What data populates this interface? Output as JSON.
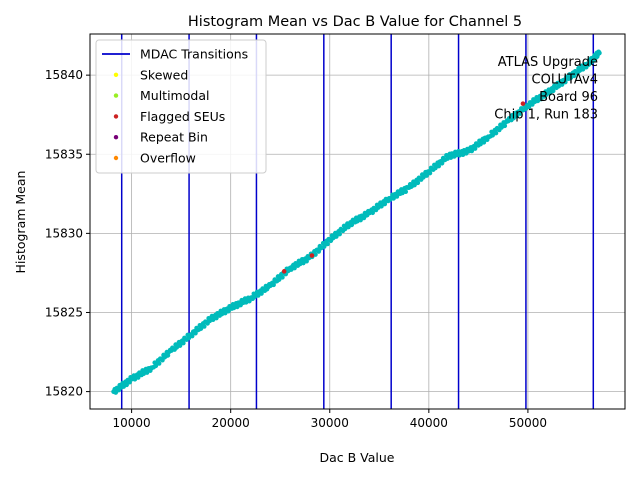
{
  "chart_data": {
    "type": "scatter",
    "title": "Histogram Mean vs Dac B Value for Channel 5",
    "xlabel": "Dac B Value",
    "ylabel": "Histogram Mean",
    "xlim": [
      5800,
      59800
    ],
    "ylim": [
      15818.9,
      15842.6
    ],
    "xticks": [
      10000,
      20000,
      30000,
      40000,
      50000
    ],
    "yticks": [
      15820,
      15825,
      15830,
      15835,
      15840
    ],
    "xtick_labels": [
      "10000",
      "20000",
      "30000",
      "40000",
      "50000"
    ],
    "ytick_labels": [
      "15820",
      "15825",
      "15830",
      "15835",
      "15840"
    ],
    "grid": true,
    "legend_position": "top-left",
    "legend": [
      {
        "label": "MDAC Transitions",
        "kind": "line",
        "color": "#0000cc"
      },
      {
        "label": "Skewed",
        "kind": "dot",
        "color": "#ffff00"
      },
      {
        "label": "Multimodal",
        "kind": "dot",
        "color": "#99ee22"
      },
      {
        "label": "Flagged SEUs",
        "kind": "dot",
        "color": "#cc2222"
      },
      {
        "label": "Repeat Bin",
        "kind": "dot",
        "color": "#770077"
      },
      {
        "label": "Overflow",
        "kind": "dot",
        "color": "#ff8800"
      }
    ],
    "annotation_lines": [
      "ATLAS Upgrade",
      "COLUTAv4",
      "Board 96",
      "Chip 1, Run 183"
    ],
    "mdac_transitions": [
      9000,
      15800,
      22600,
      29400,
      36200,
      43000,
      49800,
      56600
    ],
    "series": [
      {
        "color": "#00bbbb",
        "x": [
          8200,
          10000,
          12000,
          14000,
          16000,
          18000,
          20000,
          22000,
          24000,
          26000,
          28000,
          30000,
          32000,
          34000,
          36000,
          38000,
          40000,
          42000,
          44000,
          46000,
          48000,
          50000,
          52000,
          54000,
          56000,
          57200
        ],
        "y": [
          15820.0,
          15820.8,
          15821.5,
          15822.6,
          15823.6,
          15824.6,
          15825.3,
          15825.9,
          15826.7,
          15827.8,
          15828.5,
          15829.6,
          15830.6,
          15831.3,
          15832.2,
          15832.9,
          15833.9,
          15834.9,
          15835.2,
          15836.1,
          15837.1,
          15838.1,
          15838.9,
          15839.8,
          15840.7,
          15841.4
        ]
      },
      {
        "color": "#cc2222",
        "x": [
          25400,
          28200,
          49500
        ],
        "y": [
          15827.6,
          15828.6,
          15838.2
        ]
      }
    ]
  }
}
